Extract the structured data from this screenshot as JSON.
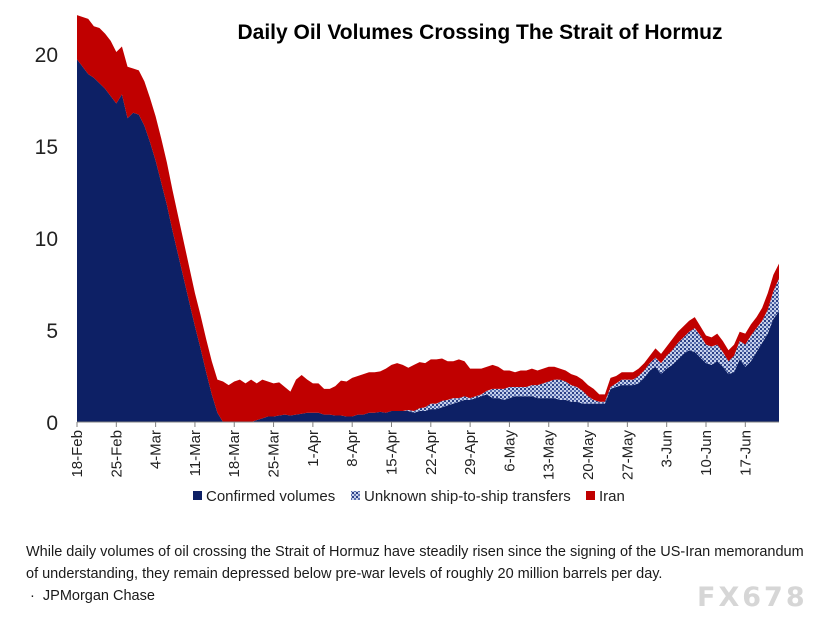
{
  "chart_data": {
    "type": "area",
    "stacked": true,
    "title": "Daily Oil Volumes Crossing The Strait of Hormuz",
    "xlabel": "",
    "ylabel": "",
    "ylim": [
      0,
      22
    ],
    "yticks": [
      0,
      5,
      10,
      15,
      20
    ],
    "x_ticks": [
      "18-Feb",
      "25-Feb",
      "4-Mar",
      "11-Mar",
      "18-Mar",
      "25-Mar",
      "1-Apr",
      "8-Apr",
      "15-Apr",
      "22-Apr",
      "29-Apr",
      "6-May",
      "13-May",
      "20-May",
      "27-May",
      "3-Jun",
      "10-Jun",
      "17-Jun"
    ],
    "x_start": "18-Feb",
    "x_end": "23-Jun",
    "x_days": [
      0,
      1,
      2,
      3,
      4,
      5,
      6,
      7,
      8,
      9,
      10,
      11,
      12,
      13,
      14,
      15,
      16,
      17,
      18,
      19,
      20,
      21,
      22,
      23,
      24,
      25,
      26,
      27,
      28,
      29,
      30,
      31,
      32,
      33,
      34,
      35,
      36,
      37,
      38,
      39,
      40,
      41,
      42,
      43,
      44,
      45,
      46,
      47,
      48,
      49,
      50,
      51,
      52,
      53,
      54,
      55,
      56,
      57,
      58,
      59,
      60,
      61,
      62,
      63,
      64,
      65,
      66,
      67,
      68,
      69,
      70,
      71,
      72,
      73,
      74,
      75,
      76,
      77,
      78,
      79,
      80,
      81,
      82,
      83,
      84,
      85,
      86,
      87,
      88,
      89,
      90,
      91,
      92,
      93,
      94,
      95,
      96,
      97,
      98,
      99,
      100,
      101,
      102,
      103,
      104,
      105,
      106,
      107,
      108,
      109,
      110,
      111,
      112,
      113,
      114,
      115,
      116,
      117,
      118,
      119,
      120,
      121,
      122,
      123,
      124,
      125
    ],
    "series": [
      {
        "name": "Confirmed volumes",
        "color": "#0d2065",
        "values": [
          19.7,
          19.3,
          18.9,
          18.7,
          18.4,
          18.1,
          17.7,
          17.3,
          17.8,
          16.5,
          16.8,
          16.7,
          16.1,
          15.2,
          14.2,
          13.0,
          11.8,
          10.4,
          9.1,
          7.8,
          6.5,
          5.2,
          4.0,
          2.7,
          1.5,
          0.5,
          0.0,
          0.0,
          0.0,
          0.0,
          0.0,
          0.0,
          0.1,
          0.2,
          0.3,
          0.3,
          0.35,
          0.4,
          0.35,
          0.4,
          0.45,
          0.5,
          0.5,
          0.5,
          0.4,
          0.4,
          0.35,
          0.35,
          0.3,
          0.3,
          0.4,
          0.4,
          0.5,
          0.5,
          0.55,
          0.5,
          0.6,
          0.6,
          0.6,
          0.6,
          0.5,
          0.6,
          0.6,
          0.7,
          0.7,
          0.8,
          0.9,
          1.0,
          1.1,
          1.2,
          1.2,
          1.3,
          1.4,
          1.5,
          1.3,
          1.3,
          1.2,
          1.3,
          1.4,
          1.4,
          1.4,
          1.4,
          1.3,
          1.3,
          1.3,
          1.3,
          1.2,
          1.2,
          1.1,
          1.1,
          1.0,
          1.0,
          1.0,
          1.0,
          1.0,
          1.8,
          1.9,
          2.0,
          2.0,
          2.0,
          2.1,
          2.4,
          2.8,
          3.0,
          2.6,
          2.9,
          3.1,
          3.4,
          3.7,
          3.9,
          3.8,
          3.5,
          3.2,
          3.1,
          3.3,
          3.0,
          2.6,
          2.7,
          3.4,
          3.0,
          3.3,
          3.8,
          4.3,
          4.8,
          5.6,
          6.0
        ],
        "description_units": "million barrels per day"
      },
      {
        "name": "Unknown ship-to-ship transfers",
        "color": "#8fa1cf",
        "values": [
          0,
          0,
          0,
          0,
          0,
          0,
          0,
          0,
          0,
          0,
          0,
          0,
          0,
          0,
          0,
          0,
          0,
          0,
          0,
          0,
          0,
          0,
          0,
          0,
          0,
          0,
          0,
          0,
          0,
          0,
          0,
          0,
          0,
          0,
          0,
          0,
          0,
          0,
          0,
          0,
          0,
          0,
          0,
          0,
          0,
          0,
          0,
          0,
          0,
          0,
          0,
          0,
          0,
          0,
          0,
          0,
          0,
          0,
          0,
          0.05,
          0.1,
          0.15,
          0.2,
          0.3,
          0.3,
          0.35,
          0.3,
          0.3,
          0.2,
          0.2,
          0.1,
          0.1,
          0.1,
          0.2,
          0.5,
          0.5,
          0.6,
          0.6,
          0.5,
          0.5,
          0.5,
          0.6,
          0.7,
          0.8,
          0.9,
          1.0,
          1.1,
          1.0,
          0.9,
          0.8,
          0.7,
          0.4,
          0.2,
          0.1,
          0.1,
          0.1,
          0.2,
          0.3,
          0.3,
          0.3,
          0.4,
          0.4,
          0.4,
          0.5,
          0.6,
          0.7,
          0.8,
          0.9,
          0.9,
          1.0,
          1.3,
          1.2,
          1.0,
          1.0,
          0.9,
          0.8,
          0.7,
          0.9,
          1.0,
          1.2,
          1.4,
          1.3,
          1.2,
          1.3,
          1.5,
          1.8
        ]
      },
      {
        "name": "Iran",
        "color": "#c00000",
        "values": [
          2.4,
          2.7,
          3.0,
          2.8,
          3.0,
          3.0,
          3.0,
          2.8,
          2.6,
          2.8,
          2.4,
          2.4,
          2.4,
          2.4,
          2.4,
          2.4,
          2.3,
          2.2,
          2.1,
          2.0,
          1.9,
          1.8,
          1.8,
          1.8,
          1.8,
          1.8,
          2.2,
          2.0,
          2.2,
          2.3,
          2.1,
          2.3,
          2.0,
          2.1,
          1.9,
          1.8,
          1.8,
          1.5,
          1.3,
          1.9,
          2.1,
          1.8,
          1.6,
          1.6,
          1.4,
          1.4,
          1.6,
          1.9,
          1.9,
          2.1,
          2.1,
          2.2,
          2.2,
          2.2,
          2.2,
          2.4,
          2.5,
          2.6,
          2.5,
          2.3,
          2.5,
          2.5,
          2.4,
          2.4,
          2.4,
          2.3,
          2.1,
          2.0,
          2.1,
          1.9,
          1.6,
          1.5,
          1.4,
          1.3,
          1.3,
          1.2,
          1.0,
          0.9,
          0.8,
          0.9,
          0.9,
          0.9,
          0.8,
          0.8,
          0.8,
          0.7,
          0.6,
          0.6,
          0.6,
          0.6,
          0.6,
          0.6,
          0.6,
          0.4,
          0.4,
          0.5,
          0.4,
          0.4,
          0.4,
          0.4,
          0.4,
          0.4,
          0.4,
          0.5,
          0.5,
          0.5,
          0.6,
          0.6,
          0.6,
          0.6,
          0.6,
          0.5,
          0.5,
          0.5,
          0.6,
          0.6,
          0.6,
          0.6,
          0.5,
          0.6,
          0.6,
          0.6,
          0.7,
          0.9,
          0.9,
          0.8
        ]
      }
    ],
    "legend_position": "bottom",
    "grid": false
  },
  "caption": "While daily volumes of oil crossing the Strait of Hormuz have steadily risen since the signing of the US-Iran memorandum of understanding, they remain depressed below pre-war levels of roughly 20 million barrels per day.",
  "source": "JPMorgan Chase",
  "source_bullet": "·",
  "watermark": "FX678"
}
